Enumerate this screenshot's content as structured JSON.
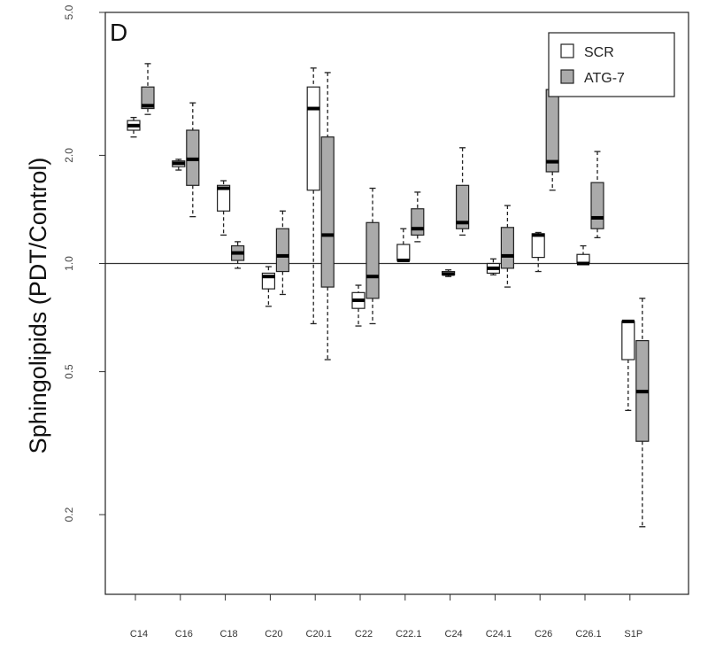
{
  "chart_data": {
    "type": "box",
    "panel_label": "D",
    "ylabel": "Sphingolipids   (PDT/Control)",
    "xlabel": "",
    "y_scale": "log",
    "ylim": [
      0.12,
      5.0
    ],
    "y_ticks": [
      0.2,
      0.5,
      1.0,
      2.0,
      5.0
    ],
    "y_tick_labels": [
      "0.2",
      "0.5",
      "1.0",
      "2.0",
      "5.0"
    ],
    "reference_line": 1.0,
    "categories": [
      "C14",
      "C16",
      "C18",
      "C20",
      "C20.1",
      "C22",
      "C22.1",
      "C24",
      "C24.1",
      "C26",
      "C26.1",
      "S1P"
    ],
    "legend": {
      "position": "top-right",
      "entries": [
        "SCR",
        "ATG-7"
      ]
    },
    "series": [
      {
        "name": "SCR",
        "color": "#ffffff",
        "boxes": [
          {
            "whisker_low": 2.25,
            "q1": 2.35,
            "median": 2.42,
            "q3": 2.5,
            "whisker_high": 2.55
          },
          {
            "whisker_low": 1.82,
            "q1": 1.86,
            "median": 1.9,
            "q3": 1.93,
            "whisker_high": 1.95
          },
          {
            "whisker_low": 1.2,
            "q1": 1.4,
            "median": 1.62,
            "q3": 1.65,
            "whisker_high": 1.7
          },
          {
            "whisker_low": 0.76,
            "q1": 0.85,
            "median": 0.92,
            "q3": 0.94,
            "whisker_high": 0.98
          },
          {
            "whisker_low": 0.68,
            "q1": 1.6,
            "median": 2.7,
            "q3": 3.1,
            "whisker_high": 3.5
          },
          {
            "whisker_low": 0.67,
            "q1": 0.75,
            "median": 0.79,
            "q3": 0.83,
            "whisker_high": 0.87
          },
          {
            "whisker_low": 1.02,
            "q1": 1.02,
            "median": 1.02,
            "q3": 1.13,
            "whisker_high": 1.25
          },
          {
            "whisker_low": 0.92,
            "q1": 0.93,
            "median": 0.935,
            "q3": 0.95,
            "whisker_high": 0.96
          },
          {
            "whisker_low": 0.93,
            "q1": 0.94,
            "median": 0.97,
            "q3": 1.0,
            "whisker_high": 1.03
          },
          {
            "whisker_low": 0.95,
            "q1": 1.04,
            "median": 1.2,
            "q3": 1.21,
            "whisker_high": 1.22
          },
          {
            "whisker_low": 1.0,
            "q1": 1.0,
            "median": 1.0,
            "q3": 1.06,
            "whisker_high": 1.12
          },
          {
            "whisker_low": 0.39,
            "q1": 0.54,
            "median": 0.69,
            "q3": 0.69,
            "whisker_high": 0.69
          }
        ]
      },
      {
        "name": "ATG-7",
        "color": "#aaaaaa",
        "boxes": [
          {
            "whisker_low": 2.6,
            "q1": 2.7,
            "median": 2.75,
            "q3": 3.1,
            "whisker_high": 3.6
          },
          {
            "whisker_low": 1.35,
            "q1": 1.65,
            "median": 1.95,
            "q3": 2.35,
            "whisker_high": 2.8
          },
          {
            "whisker_low": 0.97,
            "q1": 1.02,
            "median": 1.07,
            "q3": 1.12,
            "whisker_high": 1.15
          },
          {
            "whisker_low": 0.82,
            "q1": 0.95,
            "median": 1.05,
            "q3": 1.25,
            "whisker_high": 1.4
          },
          {
            "whisker_low": 0.54,
            "q1": 0.86,
            "median": 1.2,
            "q3": 2.25,
            "whisker_high": 3.4
          },
          {
            "whisker_low": 0.68,
            "q1": 0.8,
            "median": 0.92,
            "q3": 1.3,
            "whisker_high": 1.62
          },
          {
            "whisker_low": 1.15,
            "q1": 1.2,
            "median": 1.25,
            "q3": 1.42,
            "whisker_high": 1.58
          },
          {
            "whisker_low": 1.2,
            "q1": 1.25,
            "median": 1.3,
            "q3": 1.65,
            "whisker_high": 2.1
          },
          {
            "whisker_low": 0.86,
            "q1": 0.97,
            "median": 1.05,
            "q3": 1.26,
            "whisker_high": 1.45
          },
          {
            "whisker_low": 1.6,
            "q1": 1.8,
            "median": 1.92,
            "q3": 3.05,
            "whisker_high": 4.2
          },
          {
            "whisker_low": 1.18,
            "q1": 1.25,
            "median": 1.34,
            "q3": 1.68,
            "whisker_high": 2.05
          },
          {
            "whisker_low": 0.185,
            "q1": 0.32,
            "median": 0.44,
            "q3": 0.61,
            "whisker_high": 0.8
          }
        ]
      }
    ]
  }
}
